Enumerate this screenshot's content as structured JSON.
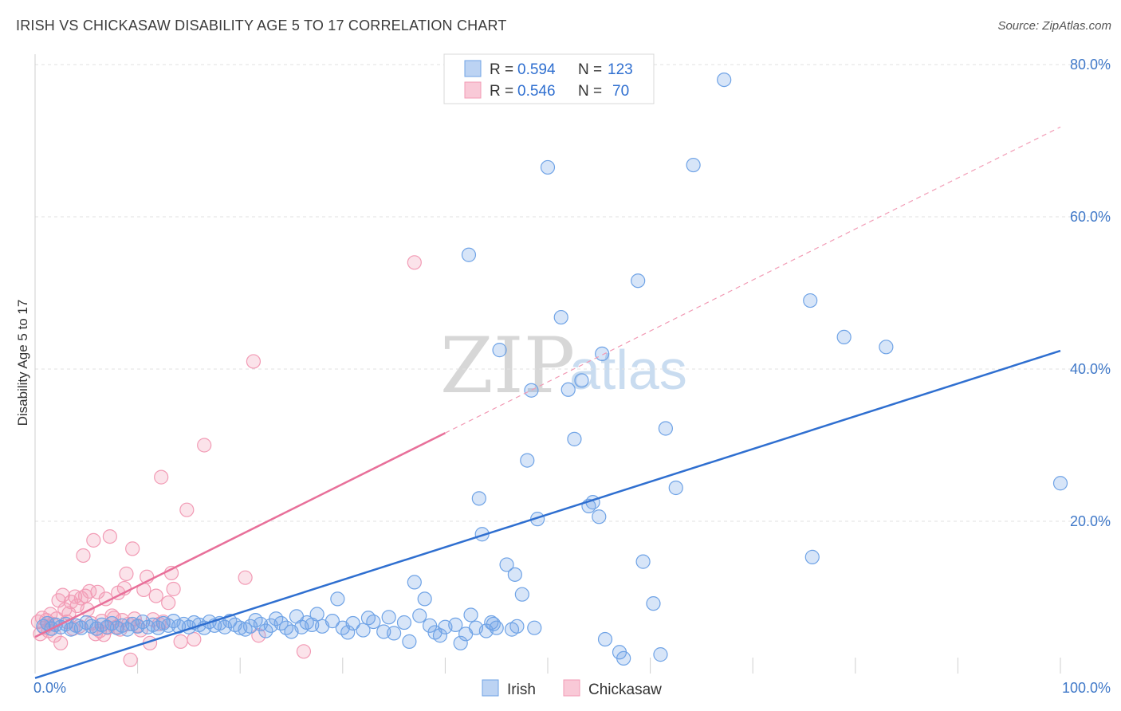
{
  "title": "IRISH VS CHICKASAW DISABILITY AGE 5 TO 17 CORRELATION CHART",
  "source": "Source: ZipAtlas.com",
  "watermark": {
    "zip": "ZIP",
    "atlas": "atlas"
  },
  "colors": {
    "irish": "#6fa3e6",
    "irish_line": "#2f6fd0",
    "chickasaw": "#f29bb5",
    "chickasaw_line": "#e8709a",
    "tick_text": "#3f78c8"
  },
  "legend": {
    "irish": {
      "r_label": "R = ",
      "r_value": "0.594",
      "n_label": "N = ",
      "n_value": "123"
    },
    "chickasaw": {
      "r_label": "R = ",
      "r_value": "0.546",
      "n_label": "N = ",
      "n_value": "70"
    }
  },
  "chart_data": {
    "type": "scatter",
    "title": "IRISH VS CHICKASAW DISABILITY AGE 5 TO 17 CORRELATION CHART",
    "xlabel": "",
    "ylabel": "Disability Age 5 to 17",
    "xlim": [
      0,
      100
    ],
    "ylim": [
      0,
      82
    ],
    "x_tick_labels": [
      "0.0%",
      "100.0%"
    ],
    "y_ticks": [
      20,
      40,
      60,
      80
    ],
    "y_tick_labels": [
      "20.0%",
      "40.0%",
      "60.0%",
      "80.0%"
    ],
    "grid": true,
    "legend_position": "top-center",
    "bottom_legend": [
      "Irish",
      "Chickasaw"
    ],
    "series": [
      {
        "name": "Irish",
        "trend": {
          "x": [
            0,
            100
          ],
          "y": [
            -0.6,
            42.4
          ]
        },
        "points": [
          [
            0.8,
            6.2
          ],
          [
            1.2,
            6.6
          ],
          [
            1.6,
            5.9
          ],
          [
            2.0,
            6.4
          ],
          [
            2.5,
            6.1
          ],
          [
            3.0,
            6.5
          ],
          [
            3.5,
            5.8
          ],
          [
            4.0,
            6.3
          ],
          [
            4.5,
            6.0
          ],
          [
            5.0,
            6.7
          ],
          [
            5.5,
            6.2
          ],
          [
            6.0,
            5.9
          ],
          [
            6.5,
            6.4
          ],
          [
            7.0,
            6.1
          ],
          [
            7.5,
            6.6
          ],
          [
            8.0,
            6.0
          ],
          [
            8.5,
            6.3
          ],
          [
            9.0,
            5.8
          ],
          [
            9.5,
            6.5
          ],
          [
            10.0,
            6.2
          ],
          [
            10.5,
            6.8
          ],
          [
            11.0,
            6.1
          ],
          [
            11.5,
            6.4
          ],
          [
            12.0,
            6.0
          ],
          [
            12.5,
            6.6
          ],
          [
            13.0,
            6.3
          ],
          [
            13.5,
            6.9
          ],
          [
            14.0,
            6.2
          ],
          [
            14.5,
            6.5
          ],
          [
            15.0,
            6.1
          ],
          [
            15.5,
            6.7
          ],
          [
            16.0,
            6.4
          ],
          [
            16.5,
            6.0
          ],
          [
            17.0,
            6.8
          ],
          [
            17.5,
            6.3
          ],
          [
            18.0,
            6.6
          ],
          [
            18.5,
            6.1
          ],
          [
            19.0,
            6.9
          ],
          [
            19.5,
            6.4
          ],
          [
            20.0,
            6.0
          ],
          [
            20.5,
            5.8
          ],
          [
            21.0,
            6.2
          ],
          [
            21.5,
            7.0
          ],
          [
            22.0,
            6.5
          ],
          [
            22.5,
            5.6
          ],
          [
            23.0,
            6.3
          ],
          [
            23.5,
            7.2
          ],
          [
            24.0,
            6.6
          ],
          [
            24.5,
            6.0
          ],
          [
            25.0,
            5.5
          ],
          [
            25.5,
            7.5
          ],
          [
            26.0,
            6.1
          ],
          [
            26.5,
            6.7
          ],
          [
            27.0,
            6.4
          ],
          [
            27.5,
            7.8
          ],
          [
            28.0,
            6.2
          ],
          [
            29.0,
            6.9
          ],
          [
            29.5,
            9.8
          ],
          [
            30.0,
            6.0
          ],
          [
            30.5,
            5.4
          ],
          [
            31.0,
            6.6
          ],
          [
            32.0,
            5.7
          ],
          [
            32.5,
            7.3
          ],
          [
            33.0,
            6.8
          ],
          [
            34.0,
            5.5
          ],
          [
            34.5,
            7.4
          ],
          [
            35.0,
            5.3
          ],
          [
            36.0,
            6.7
          ],
          [
            36.5,
            4.2
          ],
          [
            37.0,
            12.0
          ],
          [
            37.5,
            7.6
          ],
          [
            38.0,
            9.8
          ],
          [
            38.5,
            6.3
          ],
          [
            39.0,
            5.4
          ],
          [
            39.5,
            5.0
          ],
          [
            40.0,
            6.1
          ],
          [
            41.0,
            6.4
          ],
          [
            41.5,
            4.0
          ],
          [
            42.0,
            5.2
          ],
          [
            42.5,
            7.7
          ],
          [
            43.0,
            6.0
          ],
          [
            44.0,
            5.6
          ],
          [
            44.5,
            6.7
          ],
          [
            45.0,
            6.0
          ],
          [
            42.3,
            55.0
          ],
          [
            43.3,
            23.0
          ],
          [
            43.6,
            18.3
          ],
          [
            45.3,
            42.5
          ],
          [
            46.0,
            14.3
          ],
          [
            46.8,
            13.0
          ],
          [
            47.5,
            10.4
          ],
          [
            48.0,
            28.0
          ],
          [
            48.4,
            37.2
          ],
          [
            49.0,
            20.3
          ],
          [
            50.0,
            66.5
          ],
          [
            51.3,
            46.8
          ],
          [
            52.0,
            37.3
          ],
          [
            52.6,
            30.8
          ],
          [
            53.3,
            38.5
          ],
          [
            54.0,
            22.0
          ],
          [
            54.4,
            22.5
          ],
          [
            55.0,
            20.6
          ],
          [
            55.3,
            42.0
          ],
          [
            55.6,
            4.5
          ],
          [
            57.0,
            2.8
          ],
          [
            57.4,
            2.0
          ],
          [
            58.8,
            51.6
          ],
          [
            59.3,
            14.7
          ],
          [
            60.3,
            9.2
          ],
          [
            61.0,
            2.5
          ],
          [
            61.5,
            32.2
          ],
          [
            62.5,
            24.4
          ],
          [
            64.2,
            66.8
          ],
          [
            67.2,
            78.0
          ],
          [
            75.6,
            49.0
          ],
          [
            75.8,
            15.3
          ],
          [
            78.9,
            44.2
          ],
          [
            83.0,
            42.9
          ],
          [
            100.0,
            25.0
          ],
          [
            47.0,
            6.2
          ],
          [
            46.5,
            5.8
          ],
          [
            44.7,
            6.5
          ],
          [
            48.7,
            6.0
          ]
        ]
      },
      {
        "name": "Chickasaw",
        "trend": {
          "x": [
            0,
            40
          ],
          "y": [
            4.8,
            31.6
          ]
        },
        "trend_extension": {
          "x": [
            40,
            100
          ],
          "y": [
            31.6,
            71.8
          ]
        },
        "points": [
          [
            0.3,
            6.8
          ],
          [
            0.5,
            5.2
          ],
          [
            0.7,
            7.3
          ],
          [
            0.9,
            6.0
          ],
          [
            1.1,
            7.0
          ],
          [
            1.3,
            5.6
          ],
          [
            1.5,
            7.8
          ],
          [
            1.7,
            6.5
          ],
          [
            1.9,
            5.0
          ],
          [
            2.1,
            7.2
          ],
          [
            2.3,
            9.6
          ],
          [
            2.5,
            4.0
          ],
          [
            2.7,
            10.3
          ],
          [
            2.9,
            8.4
          ],
          [
            3.1,
            6.8
          ],
          [
            3.3,
            7.9
          ],
          [
            3.5,
            9.4
          ],
          [
            3.7,
            5.9
          ],
          [
            3.9,
            10.1
          ],
          [
            4.1,
            8.9
          ],
          [
            4.3,
            6.2
          ],
          [
            4.5,
            9.9
          ],
          [
            4.7,
            15.5
          ],
          [
            4.9,
            10.2
          ],
          [
            5.1,
            8.4
          ],
          [
            5.3,
            10.8
          ],
          [
            5.5,
            6.6
          ],
          [
            5.7,
            17.5
          ],
          [
            5.9,
            5.2
          ],
          [
            6.1,
            10.7
          ],
          [
            6.3,
            5.6
          ],
          [
            6.5,
            6.9
          ],
          [
            6.7,
            5.1
          ],
          [
            6.9,
            9.8
          ],
          [
            7.1,
            6.0
          ],
          [
            7.3,
            18.0
          ],
          [
            7.5,
            7.6
          ],
          [
            7.7,
            7.3
          ],
          [
            7.9,
            6.1
          ],
          [
            8.1,
            10.6
          ],
          [
            8.3,
            5.8
          ],
          [
            8.5,
            7.0
          ],
          [
            8.7,
            11.2
          ],
          [
            8.9,
            13.1
          ],
          [
            9.1,
            6.5
          ],
          [
            9.3,
            1.8
          ],
          [
            9.5,
            16.4
          ],
          [
            9.7,
            7.2
          ],
          [
            10.0,
            6.3
          ],
          [
            10.3,
            5.7
          ],
          [
            10.6,
            11.0
          ],
          [
            10.9,
            12.7
          ],
          [
            11.2,
            4.0
          ],
          [
            11.5,
            7.1
          ],
          [
            11.8,
            10.2
          ],
          [
            12.1,
            6.5
          ],
          [
            12.3,
            25.8
          ],
          [
            12.5,
            6.8
          ],
          [
            13.0,
            9.3
          ],
          [
            13.3,
            13.2
          ],
          [
            13.5,
            11.1
          ],
          [
            14.2,
            4.2
          ],
          [
            14.8,
            21.5
          ],
          [
            15.5,
            4.5
          ],
          [
            16.5,
            30.0
          ],
          [
            20.5,
            12.6
          ],
          [
            21.3,
            41.0
          ],
          [
            21.8,
            5.0
          ],
          [
            26.2,
            2.9
          ],
          [
            37.0,
            54.0
          ]
        ]
      }
    ]
  }
}
